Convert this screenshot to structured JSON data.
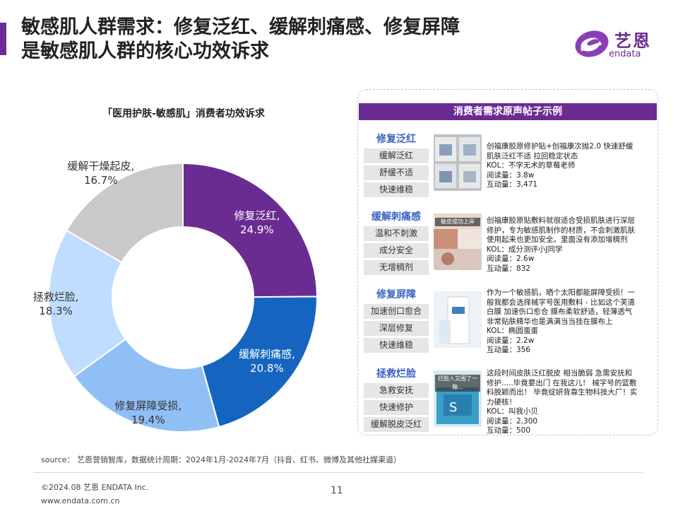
{
  "header": {
    "title_line1": "敏感肌人群需求：修复泛红、缓解刺痛感、修复屏障",
    "title_line2": "是敏感肌人群的核心功效诉求",
    "logo_text": "艺恩",
    "logo_sub": "endata",
    "accent_color": "#6b2c91"
  },
  "chart_data": {
    "type": "pie",
    "title": "「医用护肤-敏感肌」消费者功效诉求",
    "slices": [
      {
        "label": "修复泛红,",
        "value": 24.9,
        "display": "24.9%",
        "color": "#6b2c91"
      },
      {
        "label": "缓解刺痛感,",
        "value": 20.8,
        "display": "20.8%",
        "color": "#1565c0"
      },
      {
        "label": "修复屏障受损,",
        "value": 19.4,
        "display": "19.4%",
        "color": "#90bff5"
      },
      {
        "label": "拯救烂脸,",
        "value": 18.3,
        "display": "18.3%",
        "color": "#c0dcff"
      },
      {
        "label": "缓解干燥起皮,",
        "value": 16.7,
        "display": "16.7%",
        "color": "#c9c9c9"
      }
    ]
  },
  "panel": {
    "header": "消费者需求原声帖子示例",
    "categories": [
      {
        "title": "修复泛红",
        "pills": [
          "缓解泛红",
          "舒缓不适",
          "快速维稳"
        ],
        "thumb_caption": "",
        "post_text": "创福康胶原修护贴+创福康次抛2.0 快速舒缓肌肤泛红不适 拉回稳定状态",
        "kol": "KOL：不学无术的草莓老师",
        "reads": "阅读量：3.8w",
        "interactions": "互动量：3,471"
      },
      {
        "title": "缓解刺痛感",
        "pills": [
          "温和不刺激",
          "成分安全",
          "无增稠剂"
        ],
        "thumb_caption": "敏皮成功上岸",
        "post_text": "创福康胶原贴敷料就很适合受损肌肤进行深层修护，专为敏感肌制作的材质，不会刺激肌肤使用起来也更加安全。里面没有添加增稠剂",
        "kol": "KOL：成分测评小J同学",
        "reads": "阅读量：2.6w",
        "interactions": "互动量：832"
      },
      {
        "title": "修复屏障",
        "pills": [
          "加速创口愈合",
          "深层修复",
          "快速维稳"
        ],
        "thumb_caption": "",
        "post_text": "作为一个敏感肌，晒个太阳都能屏障受损！一般我都会选择械字号医用敷料 - 比如这个芙清白膜 加速伤口愈合 膜布柔软舒适，轻薄透气非常贴肤精华也是满满当当挂在膜布上",
        "kol": "KOL：椭圆蛋蛋",
        "reads": "阅读量：2.2w",
        "interactions": "互动量：356"
      },
      {
        "title": "拯救烂脸",
        "pills": [
          "急救安抚",
          "快速修护",
          "缓解脱皮泛红"
        ],
        "thumb_caption": "烂脸人又围了一箱...",
        "post_text": "这段时间皮肤泛红脱皮 相当脆弱 急需安抚和修护.....毕竟要出门 在我这儿！ 械字号的蓝敷料脱颖而出！ 毕竟绽妍背靠生物科技大厂！实力硬核！",
        "kol": "KOL：叫我小贝",
        "reads": "阅读量：2,300",
        "interactions": "互动量：500"
      }
    ]
  },
  "footer": {
    "source": "source： 艺恩营销智库，数据统计周期：2024年1月-2024年7月（抖音、红书、微博及其他社媒渠道）",
    "copyright": "©2024.08  艺恩 ENDATA Inc.",
    "url": "www.endata.com.cn",
    "page_number": "11"
  }
}
